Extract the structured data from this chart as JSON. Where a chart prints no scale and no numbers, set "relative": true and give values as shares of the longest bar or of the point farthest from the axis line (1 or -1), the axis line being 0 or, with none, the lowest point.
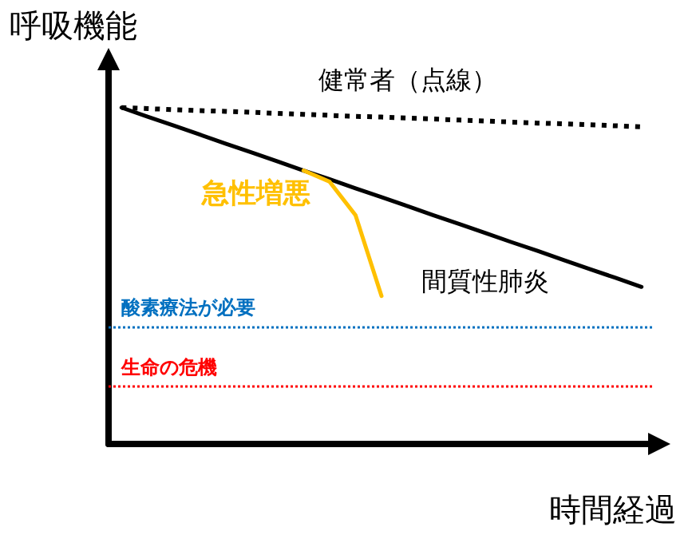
{
  "chart_data": {
    "type": "line",
    "relative": true,
    "xlabel": "時間経過",
    "ylabel": "呼吸機能",
    "grid": false,
    "legend": false,
    "marker": "none",
    "categories": [
      null,
      null,
      null,
      null,
      null,
      null,
      null,
      null,
      null,
      null,
      null,
      null,
      null,
      null,
      null,
      null,
      null,
      null,
      null,
      null,
      null
    ],
    "series": [
      {
        "name": "健常者（点線）",
        "color": "#000000",
        "line_style": "dotted",
        "values": [
          1,
          0.997,
          0.994,
          0.991,
          0.989,
          0.986,
          0.983,
          0.98,
          0.977,
          0.974,
          0.972,
          0.969,
          0.966,
          0.963,
          0.96,
          0.957,
          0.954,
          0.952,
          0.949,
          0.946,
          0.943
        ]
      },
      {
        "name": "間質性肺炎",
        "color": "#000000",
        "line_style": "solid",
        "values": [
          1,
          0.973,
          0.947,
          0.92,
          0.893,
          0.867,
          0.84,
          0.813,
          0.787,
          0.76,
          0.734,
          0.707,
          0.68,
          0.654,
          0.627,
          0.6,
          0.574,
          0.547,
          0.52,
          0.494,
          0.467
        ]
      },
      {
        "name": "急性増悪",
        "color": "#ffc000",
        "line_style": "solid",
        "values": [
          null,
          null,
          null,
          null,
          null,
          null,
          null,
          0.813,
          0.78,
          0.68,
          0.44,
          null,
          null,
          null,
          null,
          null,
          null,
          null,
          null,
          null,
          null
        ]
      }
    ],
    "ref_lines": [
      {
        "axis": "y",
        "value": 0.348,
        "label": "酸素療法が必要",
        "color": "#0070c0",
        "line_style": "dotted"
      },
      {
        "axis": "y",
        "value": 0.167,
        "label": "生命の危機",
        "color": "#ff0000",
        "line_style": "dotted"
      }
    ]
  }
}
